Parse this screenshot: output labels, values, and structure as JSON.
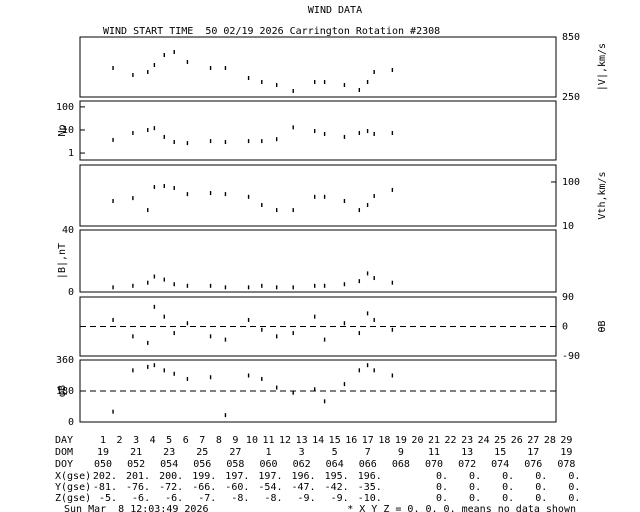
{
  "title": "WIND DATA",
  "subtitle": "WIND START TIME  50 02/19 2026 Carrington Rotation #2308",
  "chart_data": [
    {
      "type": "scatter",
      "ylabel": "|V|,km/s",
      "axis_side": "right",
      "log": false,
      "color": "#000000",
      "xlim": [
        -0.4,
        28.4
      ],
      "ylim": [
        250,
        850
      ],
      "yticks": [
        250,
        850
      ],
      "x": [
        1.6,
        2.8,
        3.7,
        4.1,
        4.7,
        5.3,
        6.1,
        7.5,
        8.4,
        9.8,
        10.6,
        11.5,
        12.5,
        13.8,
        14.4,
        15.6,
        16.5,
        17.0,
        17.4,
        18.5
      ],
      "values": [
        540,
        470,
        500,
        570,
        670,
        700,
        600,
        540,
        540,
        440,
        400,
        370,
        310,
        400,
        400,
        370,
        320,
        400,
        500,
        520
      ]
    },
    {
      "type": "scatter",
      "ylabel": "Np",
      "axis_side": "left",
      "log": true,
      "color": "#000000",
      "xlim": [
        -0.4,
        28.4
      ],
      "ylim": [
        0.5,
        180
      ],
      "yticks": [
        1,
        10,
        100
      ],
      "x": [
        1.6,
        2.8,
        3.7,
        4.1,
        4.7,
        5.3,
        6.1,
        7.5,
        8.4,
        9.8,
        10.6,
        11.5,
        12.5,
        13.8,
        14.4,
        15.6,
        16.5,
        17.0,
        17.4,
        18.5
      ],
      "values": [
        3.7,
        7.4,
        10,
        12,
        5,
        3,
        2.7,
        3.3,
        3,
        3.3,
        3.3,
        4,
        13,
        9,
        6.7,
        5,
        7.4,
        9,
        6.7,
        7.4
      ]
    },
    {
      "type": "scatter",
      "ylabel": "Vth,km/s",
      "axis_side": "right",
      "log": true,
      "color": "#000000",
      "xlim": [
        -0.4,
        28.4
      ],
      "ylim": [
        10,
        243
      ],
      "yticks": [
        10,
        100
      ],
      "x": [
        1.6,
        2.8,
        3.7,
        4.1,
        4.7,
        5.3,
        6.1,
        7.5,
        8.4,
        9.8,
        10.6,
        11.5,
        12.5,
        13.8,
        14.4,
        15.6,
        16.5,
        17.0,
        17.4,
        18.5
      ],
      "values": [
        37,
        43,
        23,
        77,
        81,
        73,
        53,
        56,
        53,
        46,
        30,
        23,
        23,
        46,
        46,
        37,
        23,
        30,
        48,
        66
      ]
    },
    {
      "type": "scatter",
      "ylabel": "|B|,nT",
      "axis_side": "left",
      "log": false,
      "color": "#000000",
      "xlim": [
        -0.4,
        28.4
      ],
      "ylim": [
        0,
        40
      ],
      "yticks": [
        0,
        40
      ],
      "x": [
        1.6,
        2.8,
        3.7,
        4.1,
        4.7,
        5.3,
        6.1,
        7.5,
        8.4,
        9.8,
        10.6,
        11.5,
        12.5,
        13.8,
        14.4,
        15.6,
        16.5,
        17.0,
        17.4,
        18.5
      ],
      "values": [
        3,
        4,
        6,
        10,
        8,
        5,
        4,
        4,
        3,
        3,
        4,
        3,
        3,
        4,
        4,
        5,
        7,
        12,
        9,
        6
      ]
    },
    {
      "type": "scatter",
      "ylabel": "θB",
      "axis_side": "right",
      "log": false,
      "color": "#000000",
      "dashed_line": 0,
      "xlim": [
        -0.4,
        28.4
      ],
      "ylim": [
        -90,
        90
      ],
      "yticks": [
        -90,
        0,
        90
      ],
      "x": [
        1.6,
        2.8,
        3.7,
        4.1,
        4.7,
        5.3,
        6.1,
        7.5,
        8.4,
        9.8,
        10.6,
        11.5,
        12.5,
        13.8,
        14.4,
        15.6,
        16.5,
        17.0,
        17.4,
        18.5
      ],
      "values": [
        20,
        -30,
        -50,
        60,
        30,
        -20,
        10,
        -30,
        -40,
        20,
        -10,
        -30,
        -20,
        30,
        -40,
        10,
        -20,
        40,
        20,
        -10
      ]
    },
    {
      "type": "scatter",
      "ylabel": "φB",
      "axis_side": "left",
      "log": false,
      "color": "#000000",
      "dashed_line": 180,
      "xlim": [
        -0.4,
        28.4
      ],
      "ylim": [
        0,
        360
      ],
      "yticks": [
        0,
        180,
        360
      ],
      "x": [
        1.6,
        2.8,
        3.7,
        4.1,
        4.7,
        5.3,
        6.1,
        7.5,
        8.4,
        9.8,
        10.6,
        11.5,
        12.5,
        13.8,
        14.4,
        15.6,
        16.5,
        17.0,
        17.4,
        18.5
      ],
      "values": [
        60,
        300,
        320,
        330,
        300,
        280,
        250,
        260,
        40,
        270,
        250,
        200,
        170,
        190,
        120,
        220,
        300,
        330,
        300,
        270
      ]
    }
  ],
  "table": {
    "row_labels": [
      "DAY",
      "DOM",
      "DOY",
      "X(gse)",
      "Y(gse)",
      "Z(gse)"
    ],
    "day": [
      "1",
      "2",
      "3",
      "4",
      "5",
      "6",
      "7",
      "8",
      "9",
      "10",
      "11",
      "12",
      "13",
      "14",
      "15",
      "16",
      "17",
      "18",
      "19",
      "20",
      "21",
      "22",
      "23",
      "24",
      "25",
      "26",
      "27",
      "28",
      "29"
    ],
    "dom": [
      "19",
      "21",
      "23",
      "25",
      "27",
      "1",
      "3",
      "5",
      "7",
      "9",
      "11",
      "13",
      "15",
      "17",
      "19"
    ],
    "doy": [
      "050",
      "052",
      "054",
      "056",
      "058",
      "060",
      "062",
      "064",
      "066",
      "068",
      "070",
      "072",
      "074",
      "076",
      "078"
    ],
    "x_gse": [
      "202.",
      "201.",
      "200.",
      "199.",
      "197.",
      "197.",
      "196.",
      "195.",
      "196.",
      null,
      "0.",
      "0.",
      "0.",
      "0.",
      "0."
    ],
    "y_gse": [
      "-81.",
      "-76.",
      "-72.",
      "-66.",
      "-60.",
      "-54.",
      "-47.",
      "-42.",
      "-35.",
      null,
      "0.",
      "0.",
      "0.",
      "0.",
      "0."
    ],
    "z_gse": [
      "-5.",
      "-6.",
      "-6.",
      "-7.",
      "-8.",
      "-8.",
      "-9.",
      "-9.",
      "-10.",
      null,
      "0.",
      "0.",
      "0.",
      "0.",
      "0."
    ]
  },
  "footer": {
    "timestamp": "Sun Mar  8 12:03:49 2026",
    "note": "* X Y Z = 0. 0. 0. means no data shown"
  }
}
